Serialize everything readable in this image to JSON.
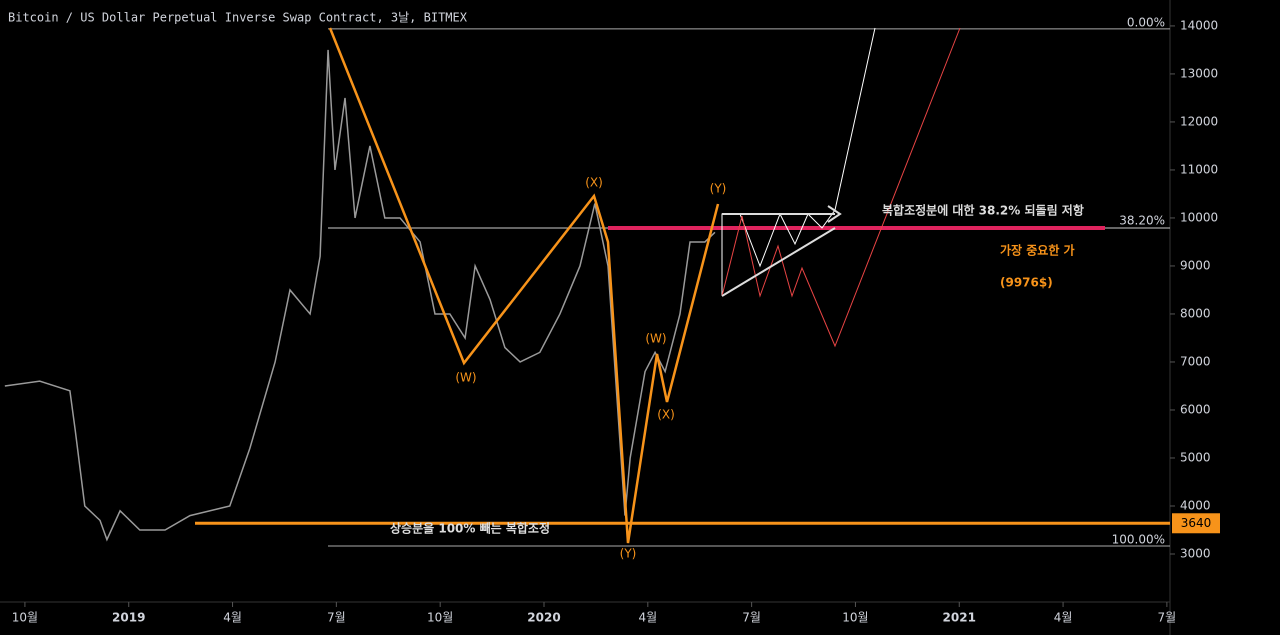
{
  "chart_data": {
    "type": "line",
    "title": "Bitcoin / US Dollar Perpetual Inverse Swap Contract, 3날, BITMEX",
    "x": [
      -0.58,
      0.43,
      1.3,
      1.45,
      1.73,
      2.17,
      2.37,
      2.75,
      3.32,
      4.05,
      4.77,
      5.92,
      6.5,
      7.23,
      7.66,
      8.24,
      8.53,
      8.76,
      8.96,
      9.25,
      9.54,
      9.97,
      10.4,
      10.84,
      11.42,
      11.85,
      12.28,
      12.72,
      13.01,
      13.44,
      13.87,
      14.31,
      14.88,
      15.46,
      16.04,
      16.47,
      16.85,
      17.34,
      17.49,
      17.92,
      18.21,
      18.5,
      18.93,
      19.22,
      19.65,
      19.94
    ],
    "series": [
      {
        "color": "#9a9a9a",
        "values": [
          6500,
          6600,
          6400,
          5600,
          4000,
          3700,
          3300,
          3900,
          3500,
          3500,
          3800,
          4000,
          5200,
          7000,
          8500,
          8000,
          9200,
          13500,
          11000,
          12500,
          10000,
          11500,
          10000,
          10000,
          9500,
          8000,
          8000,
          7500,
          9000,
          8300,
          7300,
          7000,
          7200,
          8000,
          9000,
          10300,
          9000,
          3800,
          5000,
          6800,
          7200,
          6800,
          8000,
          9500,
          9500,
          9700
        ]
      }
    ],
    "xlim": [
      -0.72,
      33.09
    ],
    "xticks": [
      {
        "value": 0,
        "label": "10월"
      },
      {
        "value": 3,
        "label": "2019"
      },
      {
        "value": 6,
        "label": "4월"
      },
      {
        "value": 9,
        "label": "7월"
      },
      {
        "value": 12,
        "label": "10월"
      },
      {
        "value": 15,
        "label": "2020"
      },
      {
        "value": 18,
        "label": "4월"
      },
      {
        "value": 21,
        "label": "7월"
      },
      {
        "value": 24,
        "label": "10월"
      },
      {
        "value": 27,
        "label": "2021"
      },
      {
        "value": 30,
        "label": "4월"
      },
      {
        "value": 33,
        "label": "7월"
      }
    ],
    "ylim": [
      2000,
      14540
    ],
    "yticks": [
      3000,
      4000,
      5000,
      6000,
      7000,
      8000,
      9000,
      10000,
      11000,
      12000,
      13000,
      14000
    ],
    "fib_labels": [
      "0.00%",
      "38.20%",
      "100.00%"
    ],
    "price_tag": 3640,
    "wave_labels": [
      "(W)",
      "(X)",
      "(Y)",
      "(W)",
      "(X)",
      "(Y)"
    ],
    "annotations": [
      "복합조정분에 대한 38.2% 되돌림 저항",
      "가장 중요한 가",
      "(9976$)",
      "상승분을 100% 빼는 복합조정"
    ]
  }
}
